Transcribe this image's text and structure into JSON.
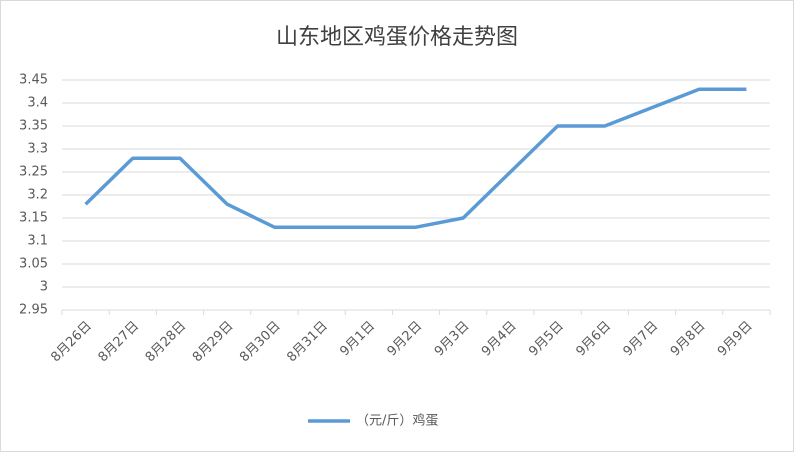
{
  "chart_data": {
    "type": "line",
    "title": "山东地区鸡蛋价格走势图",
    "categories": [
      "8月26日",
      "8月27日",
      "8月28日",
      "8月29日",
      "8月30日",
      "8月31日",
      "9月1日",
      "9月2日",
      "9月3日",
      "9月4日",
      "9月5日",
      "9月6日",
      "9月7日",
      "9月8日",
      "9月9日"
    ],
    "series": [
      {
        "name": "（元/斤）鸡蛋",
        "color": "#5b9bd5",
        "values": [
          3.18,
          3.28,
          3.28,
          3.18,
          3.13,
          3.13,
          3.13,
          3.13,
          3.15,
          3.25,
          3.35,
          3.35,
          3.39,
          3.43,
          3.43
        ]
      }
    ],
    "ylim": [
      2.95,
      3.45
    ],
    "yticks": [
      2.95,
      3,
      3.05,
      3.1,
      3.15,
      3.2,
      3.25,
      3.3,
      3.35,
      3.4,
      3.45
    ],
    "grid": true,
    "legend": "bottom"
  }
}
